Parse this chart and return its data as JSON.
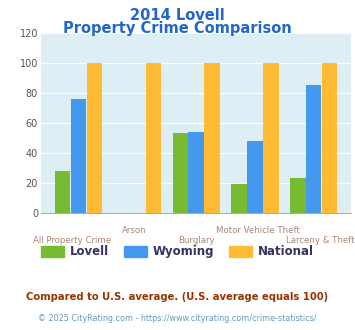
{
  "title_line1": "2014 Lovell",
  "title_line2": "Property Crime Comparison",
  "categories": [
    "All Property Crime",
    "Arson",
    "Burglary",
    "Motor Vehicle Theft",
    "Larceny & Theft"
  ],
  "lovell": [
    28,
    0,
    53,
    19,
    23
  ],
  "wyoming": [
    76,
    0,
    54,
    48,
    85
  ],
  "national": [
    100,
    100,
    100,
    100,
    100
  ],
  "color_lovell": "#77bb33",
  "color_wyoming": "#4499ee",
  "color_national": "#ffbb33",
  "color_title": "#2266cc",
  "color_xlabel": "#aa8877",
  "color_bg": "#ddeef5",
  "ylim": [
    0,
    120
  ],
  "yticks": [
    0,
    20,
    40,
    60,
    80,
    100,
    120
  ],
  "footnote1": "Compared to U.S. average. (U.S. average equals 100)",
  "footnote2": "© 2025 CityRating.com - https://www.cityrating.com/crime-statistics/",
  "footnote1_color": "#993300",
  "footnote2_color": "#6699bb",
  "legend_labels": [
    "Lovell",
    "Wyoming",
    "National"
  ],
  "legend_text_color": "#333366"
}
